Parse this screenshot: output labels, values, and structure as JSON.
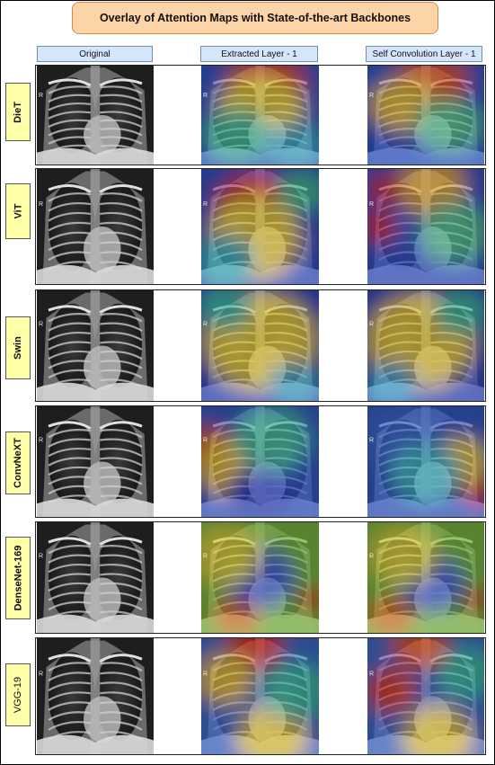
{
  "title": "Overlay of Attention Maps with State-of-the-art Backbones",
  "columns": [
    "Original",
    "Extracted Layer - 1",
    "Self Convolution Layer - 1"
  ],
  "rows": [
    {
      "label": "DieT"
    },
    {
      "label": "ViT"
    },
    {
      "label": "Swin"
    },
    {
      "label": "ConvNeXT"
    },
    {
      "label": "DenseNet-169"
    },
    {
      "label": "VGG-19"
    }
  ],
  "marker": "R"
}
